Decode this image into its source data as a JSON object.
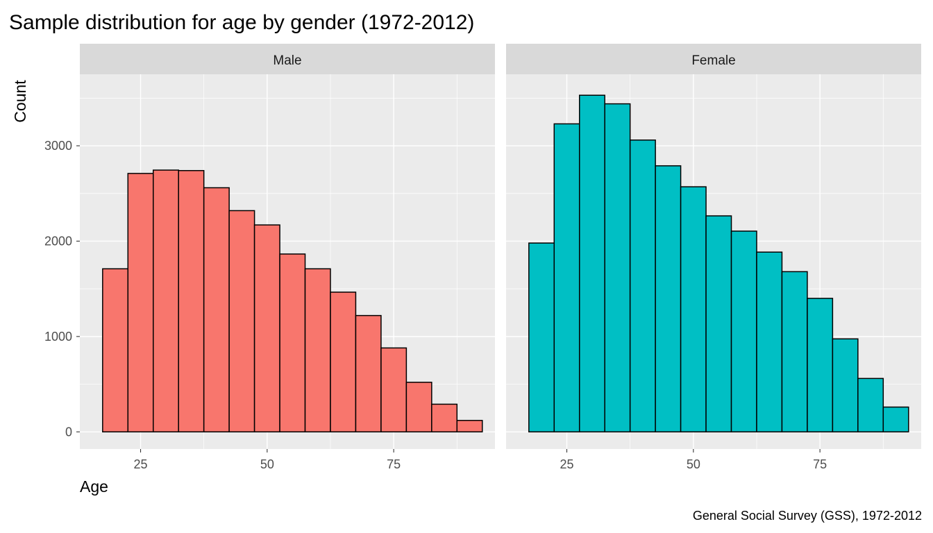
{
  "chart_data": {
    "type": "bar",
    "title": "Sample distribution for age by gender (1972-2012)",
    "xlabel": "Age",
    "ylabel": "Count",
    "caption": "General Social Survey (GSS), 1972-2012",
    "xlim": [
      13,
      95
    ],
    "ylim": [
      -180,
      3750
    ],
    "x_ticks": [
      25,
      50,
      75
    ],
    "y_ticks": [
      0,
      1000,
      2000,
      3000
    ],
    "grid": true,
    "bin_width": 5,
    "bin_starts": [
      17.5,
      22.5,
      27.5,
      32.5,
      37.5,
      42.5,
      47.5,
      52.5,
      57.5,
      62.5,
      67.5,
      72.5,
      77.5,
      82.5,
      87.5
    ],
    "panels": [
      {
        "strip": "Male",
        "fill": "#F8766D",
        "values": [
          1710,
          2710,
          2745,
          2740,
          2560,
          2320,
          2170,
          1865,
          1710,
          1465,
          1220,
          880,
          520,
          290,
          120
        ]
      },
      {
        "strip": "Female",
        "fill": "#00BFC4",
        "values": [
          1980,
          3230,
          3530,
          3440,
          3060,
          2790,
          2570,
          2265,
          2105,
          1885,
          1680,
          1400,
          975,
          560,
          260
        ]
      }
    ]
  }
}
